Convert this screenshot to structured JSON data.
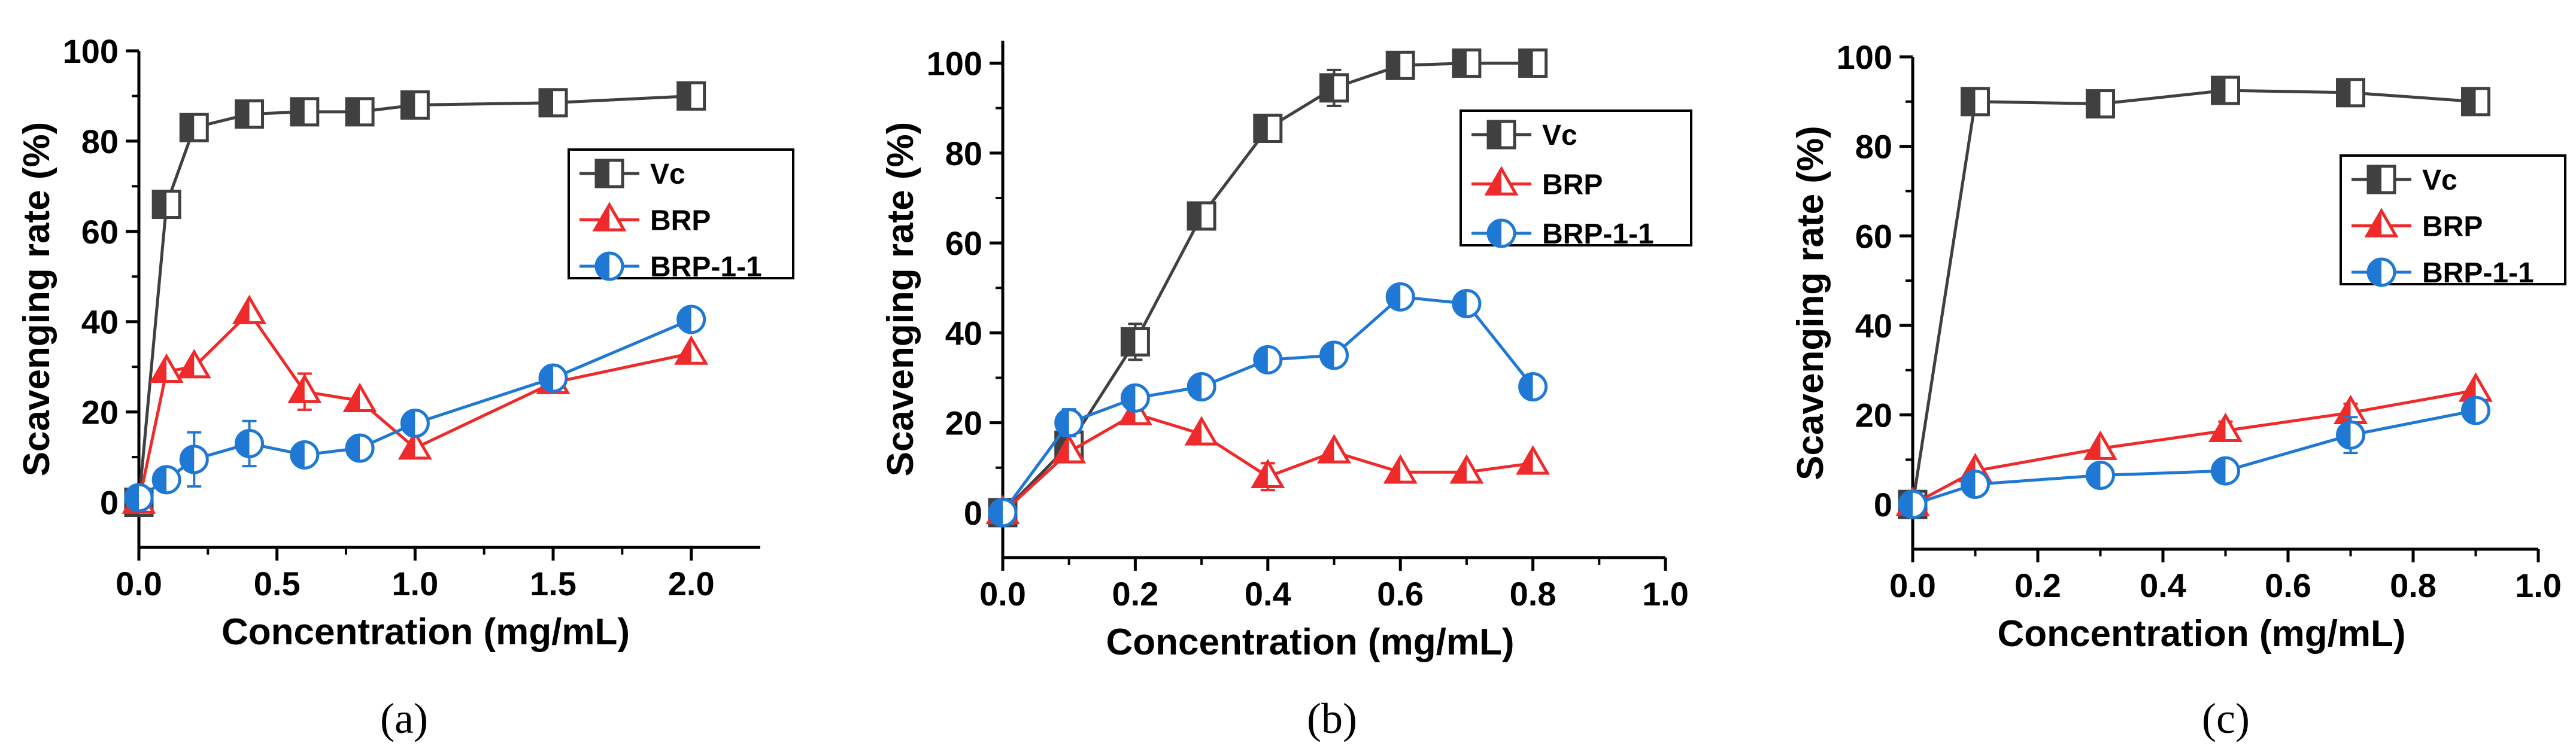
{
  "colors": {
    "Vc": "#404040",
    "BRP": "#ee2a2a",
    "BRP-1-1": "#1f78d4"
  },
  "chart_data": [
    {
      "type": "line",
      "panel_label": "(a)",
      "xlabel": "Concentration (mg/mL)",
      "ylabel": "Scavenging rate (%)",
      "xlim": [
        0,
        2.25
      ],
      "ylim": [
        -10,
        100
      ],
      "xticks": [
        0,
        0.5,
        1.0,
        1.5,
        2.0
      ],
      "xtick_labels": [
        "0.0",
        "0.5",
        "1.0",
        "1.5",
        "2.0"
      ],
      "yticks": [
        0,
        20,
        40,
        60,
        80,
        100
      ],
      "ytick_labels": [
        "0",
        "20",
        "40",
        "60",
        "80",
        "100"
      ],
      "legend": [
        "Vc",
        "BRP",
        "BRP-1-1"
      ],
      "series": [
        {
          "name": "Vc",
          "marker": "square",
          "x": [
            0,
            0.1,
            0.2,
            0.4,
            0.6,
            0.8,
            1.0,
            1.5,
            2.0
          ],
          "y": [
            0,
            66,
            83,
            86,
            86.5,
            86.5,
            88,
            88.5,
            90
          ],
          "err": [
            0,
            1,
            1,
            1,
            1,
            1,
            1,
            1,
            1
          ]
        },
        {
          "name": "BRP",
          "marker": "triangle",
          "x": [
            0,
            0.1,
            0.2,
            0.4,
            0.6,
            0.8,
            1.0,
            1.5,
            2.0
          ],
          "y": [
            0,
            29,
            30,
            42,
            24.5,
            22.5,
            12,
            26.5,
            33
          ],
          "err": [
            0,
            1,
            1,
            1,
            4,
            1,
            1,
            1,
            1
          ]
        },
        {
          "name": "BRP-1-1",
          "marker": "circle",
          "x": [
            0,
            0.1,
            0.2,
            0.4,
            0.6,
            0.8,
            1.0,
            1.5,
            2.0
          ],
          "y": [
            1,
            5,
            9.5,
            13,
            10.5,
            12,
            17.5,
            27.5,
            40.5
          ],
          "err": [
            0,
            2,
            6,
            5,
            1,
            1,
            1,
            1,
            1
          ]
        }
      ]
    },
    {
      "type": "line",
      "panel_label": "(b)",
      "xlabel": "Concentration (mg/mL)",
      "ylabel": "Scavenging rate (%)",
      "xlim": [
        0,
        1.0
      ],
      "ylim": [
        -10,
        105
      ],
      "xticks": [
        0,
        0.2,
        0.4,
        0.6,
        0.8,
        1.0
      ],
      "xtick_labels": [
        "0.0",
        "0.2",
        "0.4",
        "0.6",
        "0.8",
        "1.0"
      ],
      "yticks": [
        0,
        20,
        40,
        60,
        80,
        100
      ],
      "ytick_labels": [
        "0",
        "20",
        "40",
        "60",
        "80",
        "100"
      ],
      "legend": [
        "Vc",
        "BRP",
        "BRP-1-1"
      ],
      "series": [
        {
          "name": "Vc",
          "marker": "square",
          "x": [
            0,
            0.1,
            0.2,
            0.3,
            0.4,
            0.5,
            0.6,
            0.7,
            0.8
          ],
          "y": [
            0,
            15,
            38,
            66,
            85.5,
            94.5,
            99.5,
            100,
            100
          ],
          "err": [
            0,
            1,
            4,
            2,
            2,
            4,
            1,
            1,
            1
          ]
        },
        {
          "name": "BRP",
          "marker": "triangle",
          "x": [
            0,
            0.1,
            0.2,
            0.3,
            0.4,
            0.5,
            0.6,
            0.7,
            0.8
          ],
          "y": [
            0,
            13.5,
            22,
            17.5,
            8,
            13.5,
            9,
            9,
            11
          ],
          "err": [
            0,
            1,
            1,
            1,
            3,
            1,
            1,
            1,
            1
          ]
        },
        {
          "name": "BRP-1-1",
          "marker": "circle",
          "x": [
            0,
            0.1,
            0.2,
            0.3,
            0.4,
            0.5,
            0.6,
            0.7,
            0.8
          ],
          "y": [
            0,
            20,
            25.5,
            28,
            34,
            35,
            48,
            46.5,
            28
          ],
          "err": [
            0,
            3,
            1,
            1,
            1,
            1,
            1,
            1,
            1
          ]
        }
      ]
    },
    {
      "type": "line",
      "panel_label": "(c)",
      "xlabel": "Concentration (mg/mL)",
      "ylabel": "Scavenging rate (%)",
      "xlim": [
        0,
        1.0
      ],
      "ylim": [
        -10,
        100
      ],
      "xticks": [
        0,
        0.2,
        0.4,
        0.6,
        0.8,
        1.0
      ],
      "xtick_labels": [
        "0.0",
        "0.2",
        "0.4",
        "0.6",
        "0.8",
        "1.0"
      ],
      "yticks": [
        0,
        20,
        40,
        60,
        80,
        100
      ],
      "ytick_labels": [
        "0",
        "20",
        "40",
        "60",
        "80",
        "100"
      ],
      "legend": [
        "Vc",
        "BRP",
        "BRP-1-1"
      ],
      "series": [
        {
          "name": "Vc",
          "marker": "square",
          "x": [
            0,
            0.1,
            0.3,
            0.5,
            0.7,
            0.9
          ],
          "y": [
            0,
            90,
            89.5,
            92.5,
            92,
            90
          ],
          "err": [
            0,
            1,
            1,
            1,
            1,
            1
          ]
        },
        {
          "name": "BRP",
          "marker": "triangle",
          "x": [
            0,
            0.1,
            0.3,
            0.5,
            0.7,
            0.9
          ],
          "y": [
            0,
            7.5,
            12.5,
            16.5,
            20.5,
            25.5
          ],
          "err": [
            0,
            1,
            1,
            2,
            2,
            1
          ]
        },
        {
          "name": "BRP-1-1",
          "marker": "circle",
          "x": [
            0,
            0.1,
            0.3,
            0.5,
            0.7,
            0.9
          ],
          "y": [
            0,
            4.5,
            6.5,
            7.5,
            15.5,
            21
          ],
          "err": [
            0,
            1,
            1,
            1,
            4,
            1
          ]
        }
      ]
    }
  ]
}
